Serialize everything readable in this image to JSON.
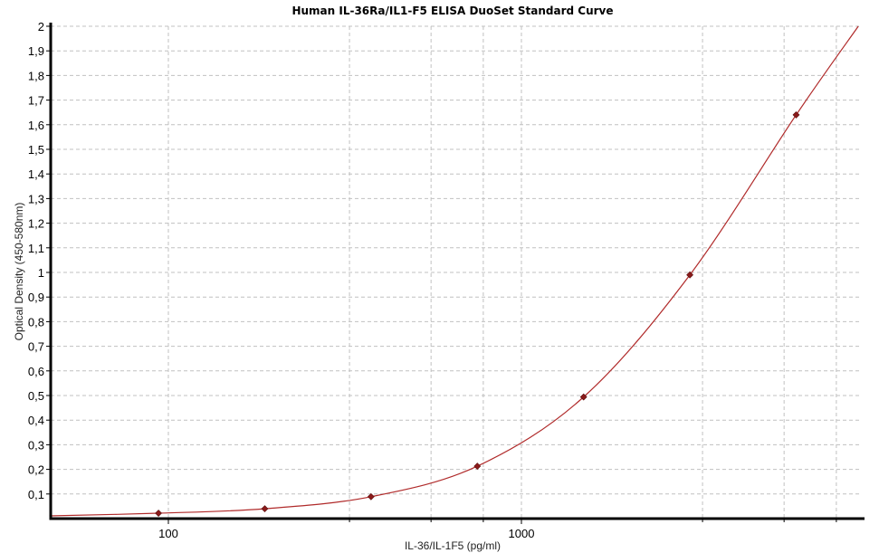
{
  "chart_data": {
    "type": "scatter",
    "title": "Human IL-36Ra/IL1-F5 ELISA DuoSet Standard Curve",
    "xlabel": "IL-36/IL-1F5 (pg/ml)",
    "ylabel": "Optical Density (450-580nm)",
    "x_scale": "log",
    "xlim": [
      46,
      9400
    ],
    "ylim": [
      0,
      2
    ],
    "x_tick_labels": [
      "100",
      "1000"
    ],
    "x_ticks": [
      100,
      1000
    ],
    "y_ticks": [
      0.1,
      0.2,
      0.3,
      0.4,
      0.5,
      0.6,
      0.7,
      0.8,
      0.9,
      1,
      1.1,
      1.2,
      1.3,
      1.4,
      1.5,
      1.6,
      1.7,
      1.8,
      1.9,
      2
    ],
    "y_tick_labels": [
      "0,1",
      "0,2",
      "0,3",
      "0,4",
      "0,5",
      "0,6",
      "0,7",
      "0,8",
      "0,9",
      "1",
      "1,1",
      "1,2",
      "1,3",
      "1,4",
      "1,5",
      "1,6",
      "1,7",
      "1,8",
      "1,9",
      "2"
    ],
    "grid": true,
    "legend": "none",
    "series": [
      {
        "x": [
          93.75,
          187.5,
          375,
          750,
          1500,
          3000,
          6000
        ],
        "y": [
          0.022,
          0.04,
          0.089,
          0.213,
          0.494,
          0.99,
          1.64
        ]
      }
    ],
    "fit_curve": {
      "x": [
        46,
        93.75,
        187.5,
        375,
        750,
        1500,
        3000,
        6000,
        9000
      ],
      "y": [
        0.011,
        0.022,
        0.04,
        0.089,
        0.213,
        0.494,
        0.99,
        1.64,
        2.0
      ]
    },
    "colors": {
      "curve": "#b02a2a",
      "points": "#8b1a1a",
      "grid": "#c0c0c0",
      "axis": "#000000"
    }
  }
}
